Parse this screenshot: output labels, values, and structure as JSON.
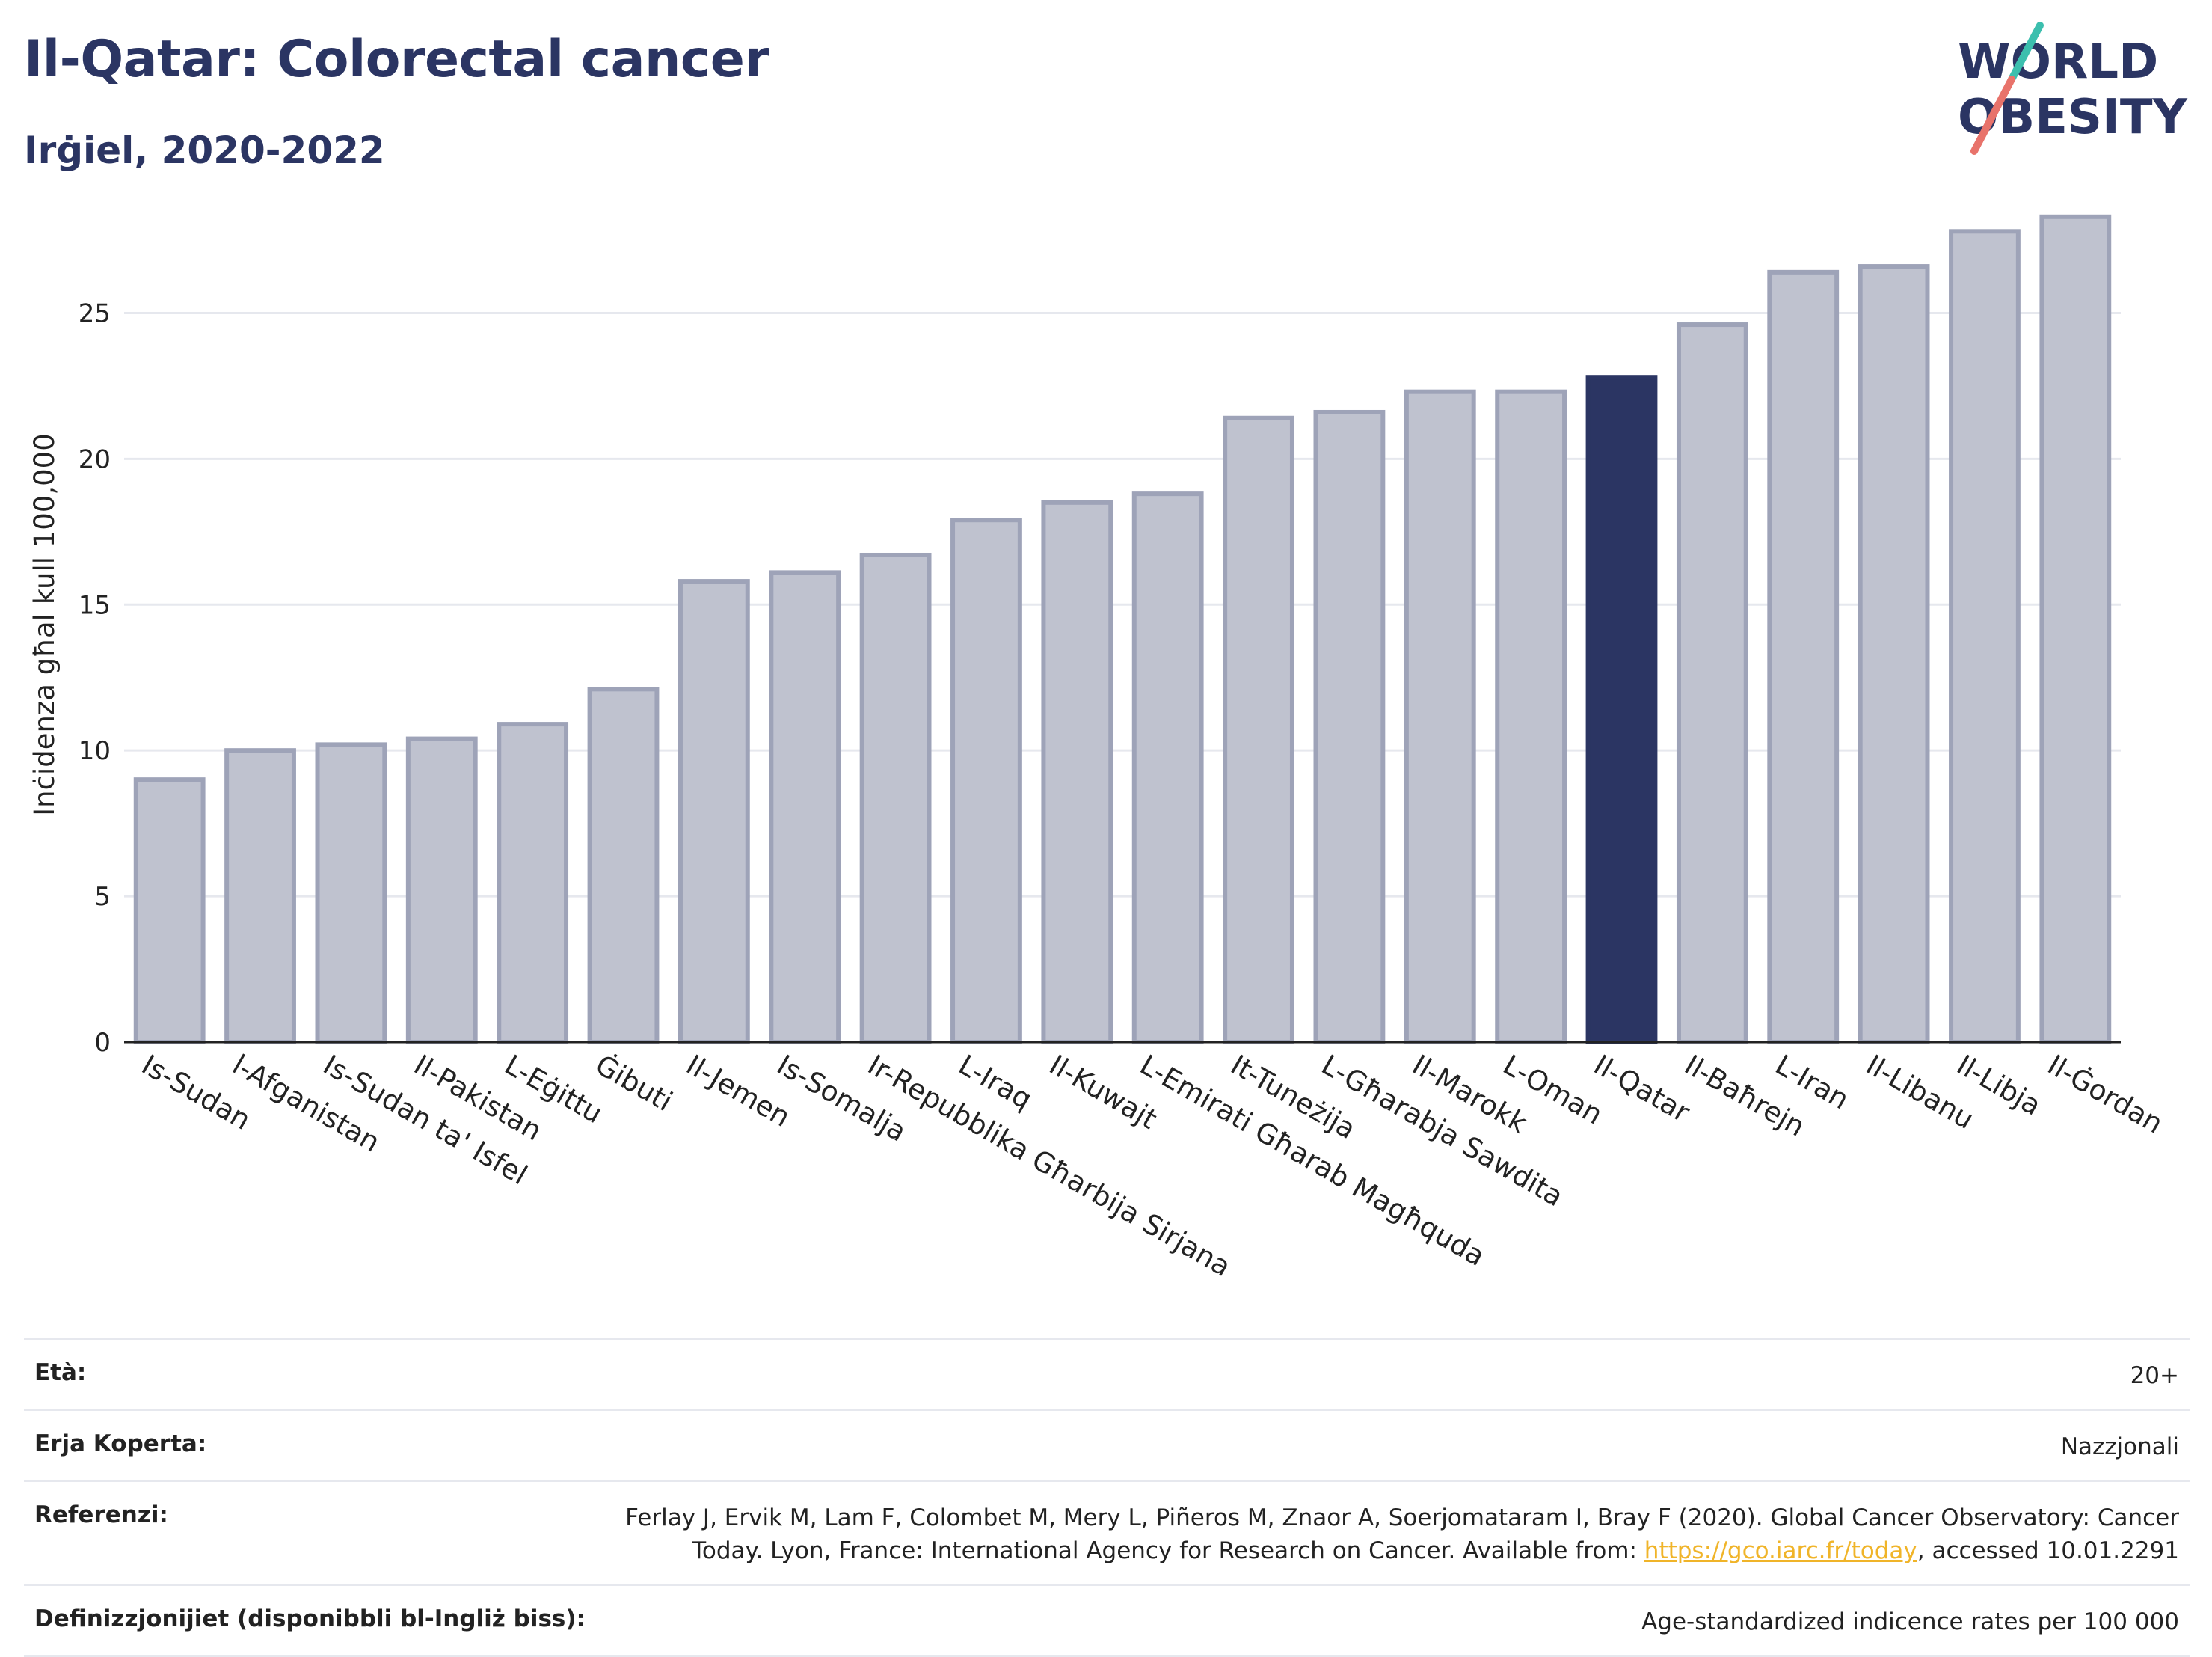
{
  "header": {
    "title": "Il-Qatar: Colorectal cancer",
    "subtitle": "Irġiel, 2020-2022"
  },
  "logo": {
    "line1": "WORLD",
    "line2": "OBESITY",
    "colors": {
      "navy": "#2b3563",
      "teal": "#3cbfae",
      "coral": "#e8736b"
    }
  },
  "chart_data": {
    "type": "bar",
    "ylabel": "Inċidenza għal kull 100,000",
    "xlabel": "",
    "ylim": [
      0,
      28.5
    ],
    "yticks": [
      0,
      5,
      10,
      15,
      20,
      25
    ],
    "grid": true,
    "highlight": "Il-Qatar",
    "colors": {
      "bar": "#bfc2cf",
      "bar_edge": "#9ea3b8",
      "highlight": "#2b3563",
      "grid": "#e6e8ee"
    },
    "categories": [
      "Is-Sudan",
      "l-Afganistan",
      "Is-Sudan ta' Isfel",
      "Il-Pakistan",
      "L-Eġittu",
      "Ġibuti",
      "Il-Jemen",
      "Is-Somalja",
      "Ir-Repubblika Għarbija Sirjana",
      "L-Iraq",
      "Il-Kuwajt",
      "L-Emirati Għarab Magħquda",
      "It-Tuneżija",
      "L-Għarabja Sawdita",
      "Il-Marokk",
      "L-Oman",
      "Il-Qatar",
      "Il-Baħrejn",
      "L-Iran",
      "Il-Libanu",
      "Il-Libja",
      "Il-Ġordan"
    ],
    "values": [
      9.0,
      10.0,
      10.2,
      10.4,
      10.9,
      12.1,
      15.8,
      16.1,
      16.7,
      17.9,
      18.5,
      18.8,
      21.4,
      21.6,
      22.3,
      22.3,
      22.8,
      24.6,
      26.4,
      26.6,
      27.8,
      28.3
    ]
  },
  "footer": {
    "rows": [
      {
        "label": "Età:",
        "value": "20+"
      },
      {
        "label": "Erja Koperta:",
        "value": "Nazzjonali"
      },
      {
        "label": "Referenzi:",
        "value_line1": "Ferlay J, Ervik M, Lam F, Colombet M, Mery L, Piñeros M, Znaor A, Soerjomataram I, Bray F (2020). Global Cancer Observatory: Cancer",
        "value_line2_pre": "Today. Lyon, France: International Agency for Research on Cancer. Available from: ",
        "link": "https://gco.iarc.fr/today",
        "value_line2_post": ", accessed 10.01.2291"
      },
      {
        "label": "Definizzjonijiet (disponibbli bl-Ingliż biss):",
        "value": "Age-standardized indicence rates per 100 000"
      }
    ]
  }
}
